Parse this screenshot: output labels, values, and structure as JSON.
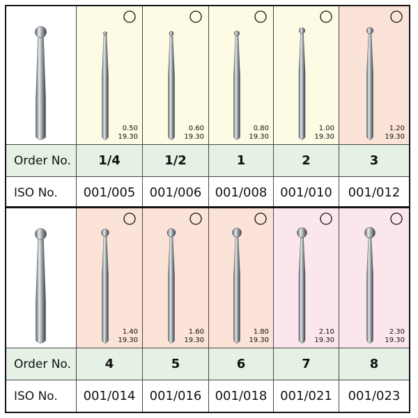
{
  "blocks": [
    {
      "order_label": "Order No.",
      "iso_label": "ISO No.",
      "items": [
        {
          "size": "0.50",
          "length": "19.30",
          "order": "1/4",
          "iso": "001/005"
        },
        {
          "size": "0.60",
          "length": "19.30",
          "order": "1/2",
          "iso": "001/006"
        },
        {
          "size": "0.80",
          "length": "19.30",
          "order": "1",
          "iso": "001/008"
        },
        {
          "size": "1.00",
          "length": "19.30",
          "order": "2",
          "iso": "001/010"
        },
        {
          "size": "1.20",
          "length": "19.30",
          "order": "3",
          "iso": "001/012"
        }
      ]
    },
    {
      "order_label": "Order No.",
      "iso_label": "ISO No.",
      "items": [
        {
          "size": "1.40",
          "length": "19.30",
          "order": "4",
          "iso": "001/014"
        },
        {
          "size": "1.60",
          "length": "19.30",
          "order": "5",
          "iso": "001/016"
        },
        {
          "size": "1.80",
          "length": "19.30",
          "order": "6",
          "iso": "001/018"
        },
        {
          "size": "2.10",
          "length": "19.30",
          "order": "7",
          "iso": "001/021"
        },
        {
          "size": "2.30",
          "length": "19.30",
          "order": "8",
          "iso": "001/023"
        }
      ]
    }
  ]
}
